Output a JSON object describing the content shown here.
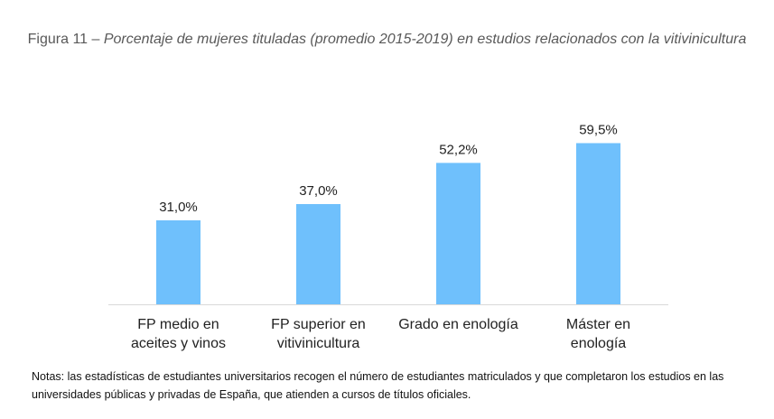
{
  "title": {
    "prefix": "Figura 11 – ",
    "main": "Porcentaje de mujeres tituladas (promedio 2015-2019) en estudios relacionados con la vitivinicultura"
  },
  "chart_data": {
    "type": "bar",
    "title": "Figura 11 – Porcentaje de mujeres tituladas (promedio 2015-2019) en estudios relacionados con la vitivinicultura",
    "categories": [
      [
        "FP medio en",
        "aceites y vinos"
      ],
      [
        "FP superior en",
        "vitivinicultura"
      ],
      [
        "Grado en enología"
      ],
      [
        "Máster en",
        "enología"
      ]
    ],
    "values": [
      31.0,
      37.0,
      52.2,
      59.5
    ],
    "value_labels": [
      "31,0%",
      "37,0%",
      "52,2%",
      "59,5%"
    ],
    "xlabel": "",
    "ylabel": "",
    "ylim": [
      0,
      60
    ],
    "grid": false,
    "legend": "none",
    "bar_color": "#6FC0FC",
    "axis_color": "#D9D9D9"
  },
  "notes": "Notas: las estadísticas de estudiantes universitarios recogen el número de estudiantes matriculados y que completaron los estudios en las universidades públicas y privadas de España, que atienden a cursos de títulos oficiales."
}
